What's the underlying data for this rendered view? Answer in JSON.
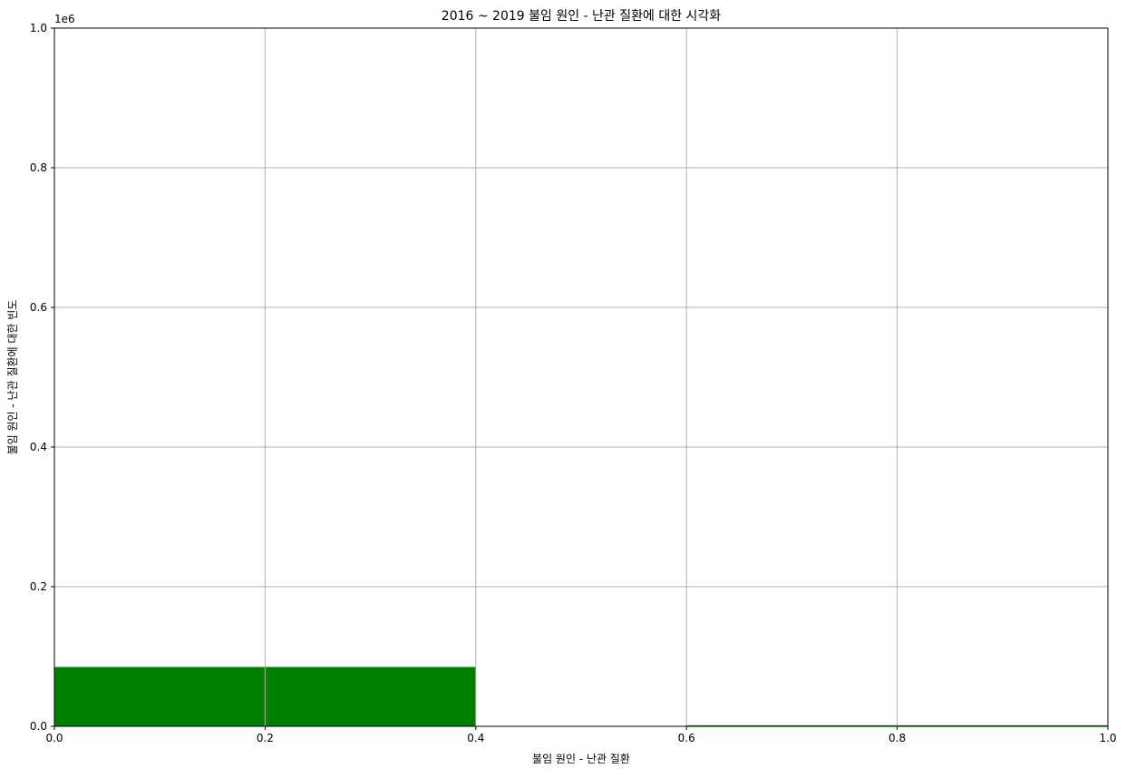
{
  "chart_data": {
    "type": "bar",
    "title": "2016 ~ 2019 불임 원인 - 난관 질환에 대한 시각화",
    "xlabel": "불임 원인 - 난관 질환",
    "ylabel": "불임 원인 - 난관 질환에 대한 빈도",
    "y_offset_label": "1e6",
    "xlim": [
      0,
      1
    ],
    "ylim": [
      0,
      1000000
    ],
    "x_ticks": [
      0.0,
      0.2,
      0.4,
      0.6,
      0.8,
      1.0
    ],
    "x_tick_labels": [
      "0.0",
      "0.2",
      "0.4",
      "0.6",
      "0.8",
      "1.0"
    ],
    "y_ticks": [
      0,
      200000,
      400000,
      600000,
      800000,
      1000000
    ],
    "y_tick_labels": [
      "0.0",
      "0.2",
      "0.4",
      "0.6",
      "0.8",
      "1.0"
    ],
    "grid": true,
    "bar_color": "#008000",
    "bars": [
      {
        "x0": 0.0,
        "x1": 0.4,
        "value": 85000
      },
      {
        "x0": 0.6,
        "x1": 1.0,
        "value": 1500
      }
    ]
  }
}
